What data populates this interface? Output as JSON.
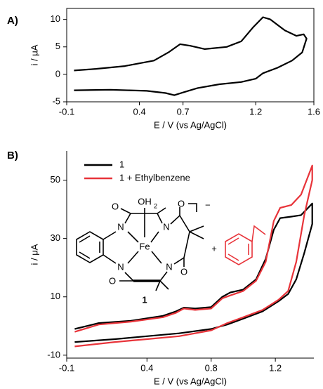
{
  "chart_data": [
    {
      "type": "line",
      "panel": "A)",
      "xlabel": "E / V (vs Ag/AgCl)",
      "ylabel": "i / μA",
      "box": true,
      "xlim": [
        -0.1,
        1.6
      ],
      "xticks": [
        -0.1,
        0.4,
        0.7,
        1.2,
        1.6
      ],
      "ylim": [
        -5,
        12
      ],
      "yticks": [
        -5,
        0,
        5,
        10
      ],
      "series": [
        {
          "color": "#000000",
          "x": [
            -0.05,
            0.1,
            0.3,
            0.5,
            0.6,
            0.68,
            0.75,
            0.85,
            1.0,
            1.1,
            1.18,
            1.25,
            1.3,
            1.4,
            1.48,
            1.53,
            1.55,
            1.52,
            1.45,
            1.35,
            1.25,
            1.2,
            1.1,
            0.95,
            0.8,
            0.7,
            0.64,
            0.58,
            0.45,
            0.2,
            -0.05
          ],
          "values": [
            0.7,
            1.0,
            1.5,
            2.5,
            4.0,
            5.5,
            5.2,
            4.6,
            5.0,
            6.0,
            8.5,
            10.4,
            10.0,
            8.0,
            7.0,
            7.3,
            6.5,
            4.0,
            2.5,
            1.2,
            0.2,
            -0.8,
            -1.4,
            -1.8,
            -2.5,
            -3.3,
            -3.8,
            -3.4,
            -3.0,
            -2.8,
            -2.9
          ]
        }
      ]
    },
    {
      "type": "line",
      "panel": "B)",
      "xlabel": "E / V (vs Ag/AgCl)",
      "ylabel": "i / μA",
      "box": false,
      "xlim": [
        -0.1,
        1.44
      ],
      "xticks": [
        -0.1,
        0.4,
        0.8,
        1.2
      ],
      "ylim": [
        -11,
        60
      ],
      "yticks": [
        -10,
        10,
        30,
        50
      ],
      "series": [
        {
          "name": "1",
          "color": "#000000",
          "x": [
            -0.05,
            0.1,
            0.3,
            0.5,
            0.58,
            0.63,
            0.7,
            0.8,
            0.87,
            0.92,
            1.0,
            1.08,
            1.14,
            1.19,
            1.23,
            1.3,
            1.36,
            1.43,
            1.43,
            1.38,
            1.33,
            1.28,
            1.22,
            1.12,
            1.0,
            0.9,
            0.8,
            0.6,
            0.4,
            0.2,
            -0.05
          ],
          "values": [
            -1,
            1,
            1.8,
            3.5,
            5,
            6.3,
            6,
            6.5,
            10,
            11.5,
            12.5,
            16,
            23,
            33,
            37,
            37.5,
            38,
            42,
            35,
            25,
            16,
            11,
            8.5,
            5,
            2.5,
            0.5,
            -1,
            -2.5,
            -3.5,
            -4.5,
            -5.5
          ]
        },
        {
          "name": "1 + Ethylbenzene",
          "color": "#e8343a",
          "x": [
            -0.05,
            0.1,
            0.3,
            0.5,
            0.58,
            0.63,
            0.7,
            0.8,
            0.87,
            0.92,
            1.0,
            1.08,
            1.14,
            1.19,
            1.23,
            1.3,
            1.36,
            1.43,
            1.43,
            1.38,
            1.33,
            1.28,
            1.22,
            1.12,
            1.0,
            0.9,
            0.8,
            0.6,
            0.4,
            0.2,
            -0.05
          ],
          "values": [
            -2,
            0.5,
            1.5,
            3,
            4.5,
            6,
            5.5,
            6,
            9.5,
            10.5,
            12,
            15.5,
            22,
            36,
            40.5,
            41.5,
            45,
            55,
            50,
            38,
            22,
            12,
            9,
            5.5,
            3,
            1,
            -1.5,
            -3.5,
            -4.5,
            -5.5,
            -7
          ]
        }
      ]
    }
  ],
  "structure": {
    "atoms": [
      "N",
      "N",
      "N",
      "N",
      "Fe",
      "O",
      "O",
      "O",
      "OH",
      "2"
    ],
    "compound_label": "1",
    "charge": "−",
    "plus": "+"
  }
}
